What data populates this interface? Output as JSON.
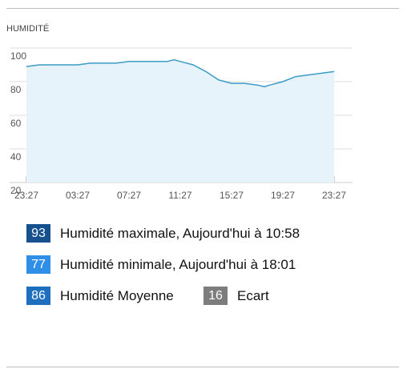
{
  "chart_data": {
    "type": "area",
    "title": "HUMIDITÉ",
    "x": [
      "23:27",
      "00:27",
      "01:27",
      "02:27",
      "03:27",
      "04:27",
      "05:27",
      "06:27",
      "07:27",
      "08:27",
      "09:27",
      "10:27",
      "10:58",
      "11:27",
      "12:27",
      "13:27",
      "14:27",
      "15:27",
      "16:27",
      "17:27",
      "18:01",
      "18:27",
      "19:27",
      "20:27",
      "21:27",
      "22:27",
      "23:27"
    ],
    "values": [
      89,
      90,
      90,
      90,
      90,
      91,
      91,
      91,
      92,
      92,
      92,
      92,
      93,
      92,
      90,
      86,
      81,
      79,
      79,
      78,
      77,
      78,
      80,
      83,
      84,
      85,
      86
    ],
    "color": "#3d9cc4",
    "fill": "#e6f3fa",
    "ylim": [
      20,
      100
    ],
    "yticks": [
      20,
      40,
      60,
      80,
      100
    ],
    "xticks": [
      "23:27",
      "03:27",
      "07:27",
      "11:27",
      "15:27",
      "19:27",
      "23:27"
    ],
    "grid": true
  },
  "stats": [
    {
      "value": 93,
      "color": "#17508f",
      "label": "Humidité maximale, Aujourd'hui à 10:58"
    },
    {
      "value": 77,
      "color": "#2f8fe8",
      "label": "Humidité minimale, Aujourd'hui à 18:01"
    },
    {
      "value": 86,
      "color": "#1e6fbe",
      "label": "Humidité Moyenne"
    },
    {
      "value": 16,
      "color": "#7d7d7d",
      "label": "Ecart"
    }
  ]
}
